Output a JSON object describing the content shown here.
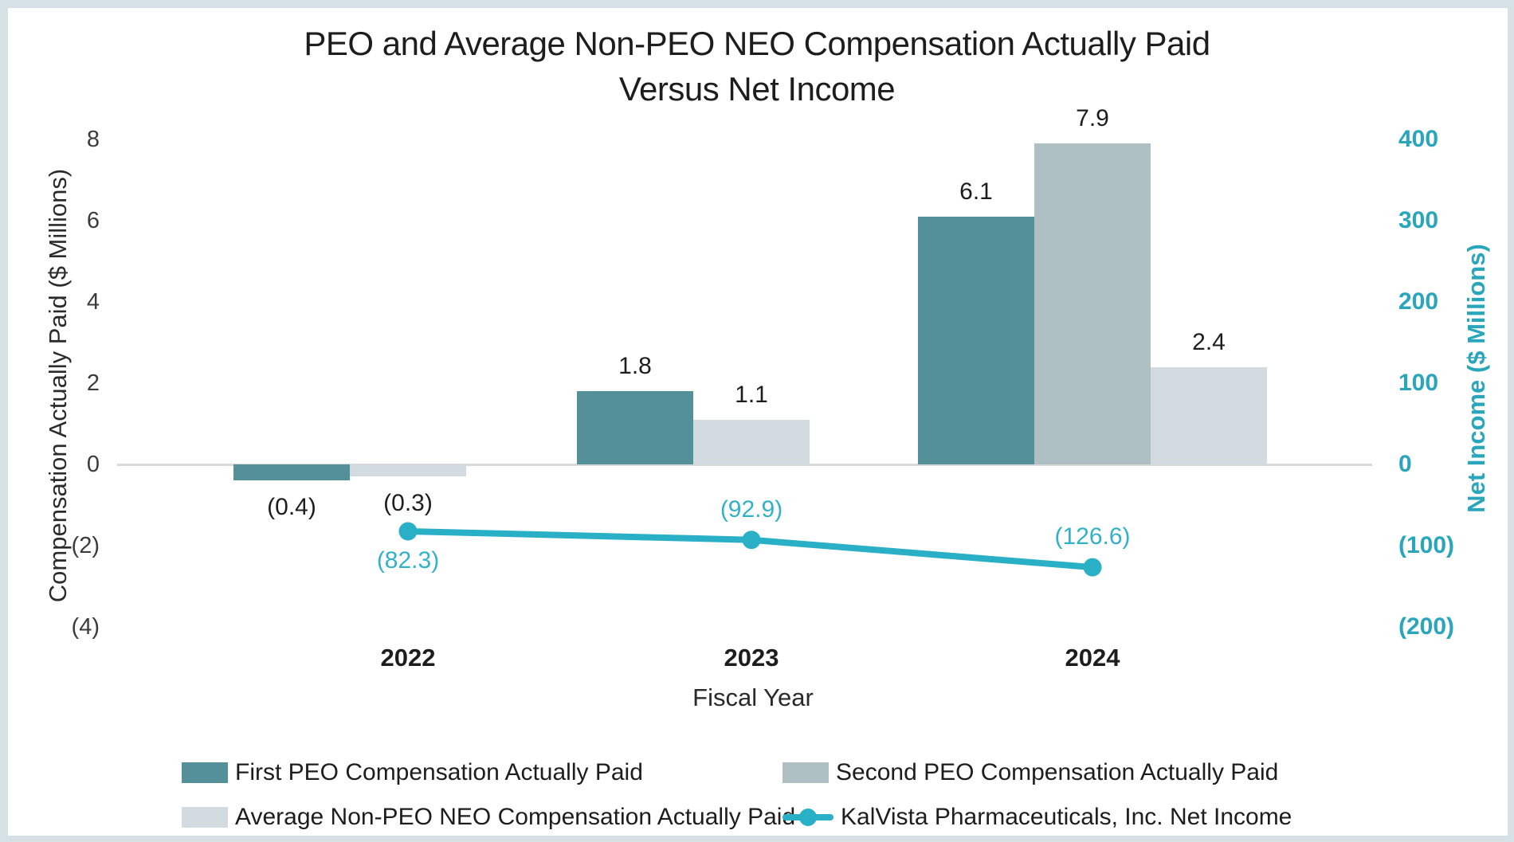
{
  "title": {
    "line1": "PEO and Average Non-PEO NEO Compensation Actually Paid",
    "line2": "Versus Net Income"
  },
  "colors": {
    "frame": "#d5e1e5",
    "zero_line": "#d9d9d9",
    "right_axis_text": "#2aa6bc",
    "net_income_line": "#29b0c6",
    "net_income_labels": "#33b1c7",
    "text": "#1d1d1d"
  },
  "chart_data": {
    "type": "bar",
    "subtype": "combo-bar-line-dual-axis",
    "title": "PEO and Average Non-PEO NEO Compensation Actually Paid Versus Net Income",
    "categories": [
      "2022",
      "2023",
      "2024"
    ],
    "series": [
      {
        "name": "First PEO Compensation Actually Paid",
        "type": "bar",
        "axis": "left",
        "color": "#54909a",
        "values": [
          -0.4,
          1.8,
          6.1
        ],
        "labels": [
          "(0.4)",
          "1.8",
          "6.1"
        ]
      },
      {
        "name": "Second PEO Compensation Actually Paid",
        "type": "bar",
        "axis": "left",
        "color": "#aec0c4",
        "values": [
          null,
          null,
          7.9
        ],
        "labels": [
          null,
          null,
          "7.9"
        ]
      },
      {
        "name": "Average Non-PEO NEO Compensation Actually Paid",
        "type": "bar",
        "axis": "left",
        "color": "#d2dce0",
        "values": [
          -0.3,
          1.1,
          2.4
        ],
        "labels": [
          "(0.3)",
          "1.1",
          "2.4"
        ]
      },
      {
        "name": "KalVista Pharmaceuticals, Inc. Net Income",
        "type": "line",
        "axis": "right",
        "color": "#29b0c6",
        "values": [
          -82.3,
          -92.9,
          -126.6
        ],
        "labels": [
          "(82.3)",
          "(92.9)",
          "(126.6)"
        ],
        "label_positions": [
          "below",
          "above",
          "above"
        ]
      }
    ],
    "left_axis": {
      "title": "Compensation Actually Paid ($ Millions)",
      "tick_labels": [
        "8",
        "6",
        "4",
        "2",
        "0",
        "(2)",
        "(4)"
      ],
      "tick_values": [
        8,
        6,
        4,
        2,
        0,
        -2,
        -4
      ],
      "range": [
        -4,
        8
      ],
      "grid": "zero-line-only"
    },
    "right_axis": {
      "title": "Net Income ($ Millions)",
      "tick_labels": [
        "400",
        "300",
        "200",
        "100",
        "0",
        "(100)",
        "(200)"
      ],
      "tick_values": [
        400,
        300,
        200,
        100,
        0,
        -100,
        -200
      ],
      "range": [
        -200,
        400
      ]
    },
    "x_axis": {
      "title": "Fiscal Year"
    },
    "legend_position": "bottom-two-columns"
  }
}
